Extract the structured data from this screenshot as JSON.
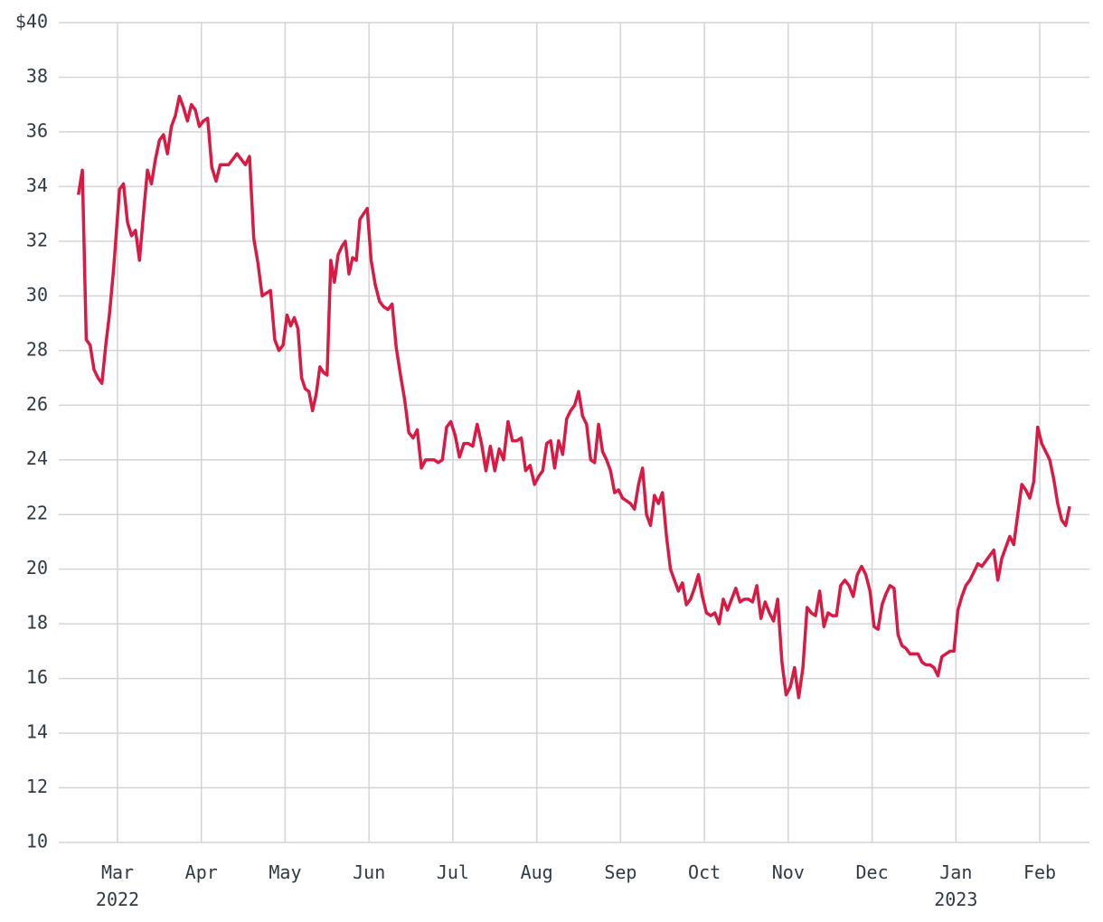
{
  "chart_data": {
    "type": "line",
    "color": "#d81b45",
    "grid": true,
    "ylim": [
      10,
      40
    ],
    "yticks": [
      {
        "value": 40,
        "label": "$40"
      },
      38,
      36,
      34,
      32,
      30,
      28,
      26,
      24,
      22,
      20,
      18,
      16,
      14,
      12,
      10
    ],
    "xlim": [
      "2022-02",
      "2023-02"
    ],
    "xticks": [
      {
        "value": "2022-03",
        "label": "Mar\n2022"
      },
      {
        "value": "2022-04",
        "label": "Apr"
      },
      {
        "value": "2022-05",
        "label": "May"
      },
      {
        "value": "2022-06",
        "label": "Jun"
      },
      {
        "value": "2022-07",
        "label": "Jul"
      },
      {
        "value": "2022-08",
        "label": "Aug"
      },
      {
        "value": "2022-09",
        "label": "Sep"
      },
      {
        "value": "2022-10",
        "label": "Oct"
      },
      {
        "value": "2022-11",
        "label": "Nov"
      },
      {
        "value": "2022-12",
        "label": "Dec"
      },
      {
        "value": "2023-01",
        "label": "Jan\n2023"
      },
      {
        "value": "2023-02",
        "label": "Feb"
      }
    ],
    "x": [
      "2022-02",
      "2022-02",
      "2022-02",
      "2022-02",
      "2022-02",
      "2022-02",
      "2022-02",
      "2022-02",
      "2022-02",
      "2022-02",
      "2022-03",
      "2022-03",
      "2022-03",
      "2022-03",
      "2022-03",
      "2022-03",
      "2022-03",
      "2022-03",
      "2022-03",
      "2022-03",
      "2022-03",
      "2022-03",
      "2022-03",
      "2022-03",
      "2022-03",
      "2022-03",
      "2022-03",
      "2022-03",
      "2022-03",
      "2022-03",
      "2022-03",
      "2022-04",
      "2022-04",
      "2022-04",
      "2022-04",
      "2022-04",
      "2022-04",
      "2022-04",
      "2022-04",
      "2022-04",
      "2022-04",
      "2022-04",
      "2022-04",
      "2022-04",
      "2022-04",
      "2022-04",
      "2022-04",
      "2022-04",
      "2022-04",
      "2022-04",
      "2022-04",
      "2022-05",
      "2022-05",
      "2022-05",
      "2022-05",
      "2022-05",
      "2022-05",
      "2022-05",
      "2022-05",
      "2022-05",
      "2022-05",
      "2022-05",
      "2022-05",
      "2022-05",
      "2022-05",
      "2022-05",
      "2022-05",
      "2022-05",
      "2022-05",
      "2022-05",
      "2022-05",
      "2022-05",
      "2022-05",
      "2022-05",
      "2022-06",
      "2022-06",
      "2022-06",
      "2022-06",
      "2022-06",
      "2022-06",
      "2022-06",
      "2022-06",
      "2022-06",
      "2022-06",
      "2022-06",
      "2022-06",
      "2022-06",
      "2022-06",
      "2022-06",
      "2022-06",
      "2022-06",
      "2022-06",
      "2022-06",
      "2022-06",
      "2022-07",
      "2022-07",
      "2022-07",
      "2022-07",
      "2022-07",
      "2022-07",
      "2022-07",
      "2022-07",
      "2022-07",
      "2022-07",
      "2022-07",
      "2022-07",
      "2022-07",
      "2022-07",
      "2022-07",
      "2022-07",
      "2022-07",
      "2022-07",
      "2022-07",
      "2022-08",
      "2022-08",
      "2022-08",
      "2022-08",
      "2022-08",
      "2022-08",
      "2022-08",
      "2022-08",
      "2022-08",
      "2022-08",
      "2022-08",
      "2022-08",
      "2022-08",
      "2022-08",
      "2022-08",
      "2022-08",
      "2022-08",
      "2022-08",
      "2022-08",
      "2022-08",
      "2022-08",
      "2022-09",
      "2022-09",
      "2022-09",
      "2022-09",
      "2022-09",
      "2022-09",
      "2022-09",
      "2022-09",
      "2022-09",
      "2022-09",
      "2022-09",
      "2022-09",
      "2022-09",
      "2022-09",
      "2022-09",
      "2022-09",
      "2022-09",
      "2022-09",
      "2022-09",
      "2022-09",
      "2022-09",
      "2022-10",
      "2022-10",
      "2022-10",
      "2022-10",
      "2022-10",
      "2022-10",
      "2022-10",
      "2022-10",
      "2022-10",
      "2022-10",
      "2022-10",
      "2022-10",
      "2022-10",
      "2022-10",
      "2022-10",
      "2022-10",
      "2022-10",
      "2022-10",
      "2022-10",
      "2022-10",
      "2022-11",
      "2022-11",
      "2022-11",
      "2022-11",
      "2022-11",
      "2022-11",
      "2022-11",
      "2022-11",
      "2022-11",
      "2022-11",
      "2022-11",
      "2022-11",
      "2022-11",
      "2022-11",
      "2022-11",
      "2022-11",
      "2022-11",
      "2022-11",
      "2022-11",
      "2022-11",
      "2022-12",
      "2022-12",
      "2022-12",
      "2022-12",
      "2022-12",
      "2022-12",
      "2022-12",
      "2022-12",
      "2022-12",
      "2022-12",
      "2022-12",
      "2022-12",
      "2022-12",
      "2022-12",
      "2022-12",
      "2022-12",
      "2022-12",
      "2022-12",
      "2022-12",
      "2022-12",
      "2022-12",
      "2023-01",
      "2023-01",
      "2023-01",
      "2023-01",
      "2023-01",
      "2023-01",
      "2023-01",
      "2023-01",
      "2023-01",
      "2023-01",
      "2023-01",
      "2023-01",
      "2023-01",
      "2023-01",
      "2023-01",
      "2023-01",
      "2023-01",
      "2023-01",
      "2023-01",
      "2023-01",
      "2023-01",
      "2023-02",
      "2023-02",
      "2023-02",
      "2023-02",
      "2023-02",
      "2023-02",
      "2023-02",
      "2023-02"
    ],
    "values": [
      33.7,
      34.6,
      28.4,
      28.2,
      27.3,
      27.0,
      26.8,
      28.2,
      29.4,
      31.0,
      33.9,
      34.1,
      32.7,
      32.2,
      32.4,
      31.3,
      33.0,
      34.6,
      34.1,
      35.0,
      35.7,
      35.9,
      35.2,
      36.2,
      36.6,
      37.3,
      36.9,
      36.4,
      37.0,
      36.8,
      36.2,
      36.4,
      36.5,
      34.7,
      34.2,
      34.8,
      34.8,
      34.8,
      35.0,
      35.2,
      35.0,
      34.8,
      35.1,
      32.1,
      31.2,
      30.0,
      30.1,
      30.2,
      28.4,
      28.0,
      28.2,
      29.3,
      28.9,
      29.2,
      28.8,
      27.0,
      26.6,
      26.5,
      25.8,
      26.4,
      27.4,
      27.2,
      27.1,
      31.3,
      30.5,
      31.5,
      31.8,
      32.0,
      30.8,
      31.4,
      31.3,
      32.8,
      33.0,
      33.2,
      31.3,
      30.4,
      29.8,
      29.6,
      29.5,
      29.7,
      28.1,
      27.1,
      26.2,
      25.0,
      24.8,
      25.1,
      23.7,
      24.0,
      24.0,
      24.0,
      23.9,
      24.0,
      25.2,
      25.4,
      24.9,
      24.1,
      24.6,
      24.6,
      24.5,
      25.3,
      24.6,
      23.6,
      24.5,
      23.6,
      24.4,
      24.0,
      25.4,
      24.7,
      24.7,
      24.8,
      23.6,
      23.8,
      23.1,
      23.4,
      23.6,
      24.6,
      24.7,
      23.7,
      24.7,
      24.2,
      25.5,
      25.8,
      26.0,
      26.5,
      25.6,
      25.3,
      24.0,
      23.9,
      25.3,
      24.3,
      24.0,
      23.6,
      22.8,
      22.9,
      22.6,
      22.5,
      22.4,
      22.2,
      23.1,
      23.7,
      22.0,
      21.6,
      22.7,
      22.4,
      22.8,
      21.2,
      20.0,
      19.6,
      19.2,
      19.5,
      18.7,
      18.9,
      19.3,
      19.8,
      19.0,
      18.4,
      18.3,
      18.4,
      18.0,
      18.9,
      18.5,
      18.9,
      19.3,
      18.8,
      18.9,
      18.9,
      18.8,
      19.4,
      18.2,
      18.8,
      18.4,
      18.1,
      18.9,
      16.6,
      15.4,
      15.7,
      16.4,
      15.3,
      16.4,
      18.6,
      18.4,
      18.3,
      19.2,
      17.9,
      18.4,
      18.3,
      18.3,
      19.4,
      19.6,
      19.4,
      19.0,
      19.8,
      20.1,
      19.8,
      19.2,
      17.9,
      17.8,
      18.7,
      19.1,
      19.4,
      19.3,
      17.6,
      17.2,
      17.1,
      16.9,
      16.9,
      16.9,
      16.6,
      16.5,
      16.5,
      16.4,
      16.1,
      16.8,
      16.9,
      17.0,
      17.0,
      18.5,
      19.0,
      19.4,
      19.6,
      19.9,
      20.2,
      20.1,
      20.3,
      20.5,
      20.7,
      19.6,
      20.4,
      20.8,
      21.2,
      20.9,
      22.0,
      23.1,
      22.9,
      22.6,
      23.2,
      25.2,
      24.6,
      24.3,
      24.0,
      23.3,
      22.4,
      21.8,
      21.6,
      22.3
    ]
  }
}
